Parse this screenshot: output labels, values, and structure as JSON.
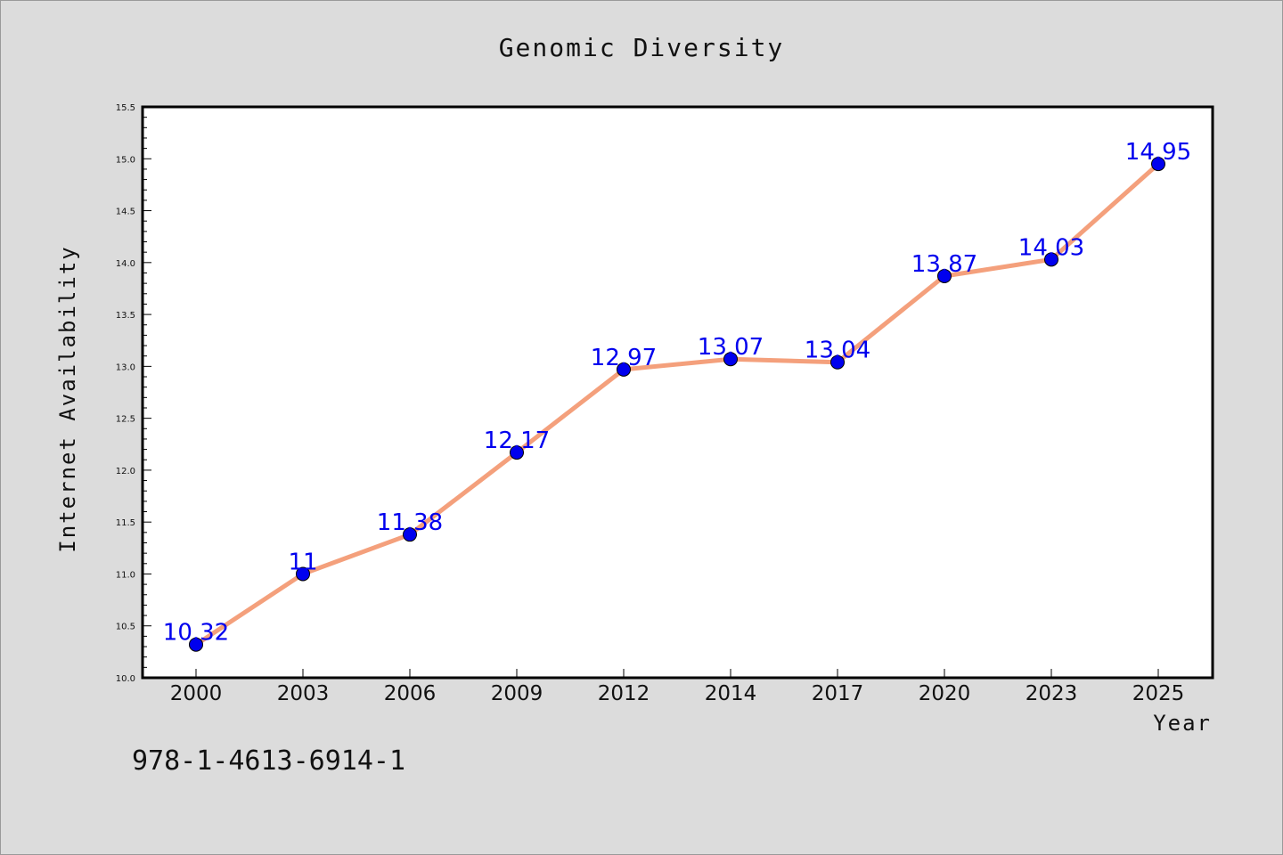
{
  "chart_data": {
    "type": "line",
    "title": "Genomic Diversity",
    "xlabel": "Year",
    "ylabel": "Internet Availability",
    "categories": [
      "2000",
      "2003",
      "2006",
      "2009",
      "2012",
      "2014",
      "2017",
      "2020",
      "2023",
      "2025"
    ],
    "series": [
      {
        "values": [
          10.32,
          11,
          11.38,
          12.17,
          12.97,
          13.07,
          13.04,
          13.87,
          14.03,
          14.95
        ]
      }
    ],
    "data_labels": [
      "10.32",
      "11",
      "11.38",
      "12.17",
      "12.97",
      "13.07",
      "13.04",
      "13.87",
      "14.03",
      "14.95"
    ],
    "ylim": [
      10.0,
      15.5
    ],
    "yticks": [
      "10.0",
      "10.5",
      "11.0",
      "11.5",
      "12.0",
      "12.5",
      "13.0",
      "13.5",
      "14.0",
      "14.5",
      "15.0",
      "15.5"
    ],
    "grid": false,
    "line_color": "#f4a07c",
    "marker_color": "#0000ee",
    "label_color": "#0000ee"
  },
  "annotation": "978-1-4613-6914-1"
}
